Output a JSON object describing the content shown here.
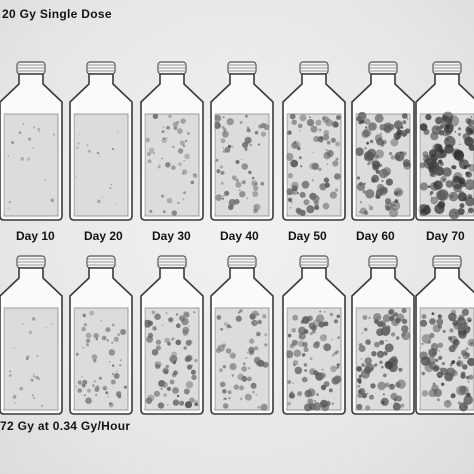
{
  "top_caption": "20 Gy Single Dose",
  "bottom_caption": "72 Gy at 0.34 Gy/Hour",
  "day_labels": [
    "Day 10",
    "Day 20",
    "Day 30",
    "Day 40",
    "Day 50",
    "Day 60",
    "Day 70"
  ],
  "top_row_colony_density": [
    0.05,
    0.05,
    0.3,
    0.45,
    0.55,
    0.75,
    0.95
  ],
  "bottom_row_colony_density": [
    0.1,
    0.4,
    0.55,
    0.45,
    0.6,
    0.7,
    0.75
  ],
  "colors": {
    "background": "#ececec",
    "glass": "#fafafa",
    "medium": "#dcdcdc",
    "colony": "#6e6e6e",
    "text": "#141414"
  }
}
